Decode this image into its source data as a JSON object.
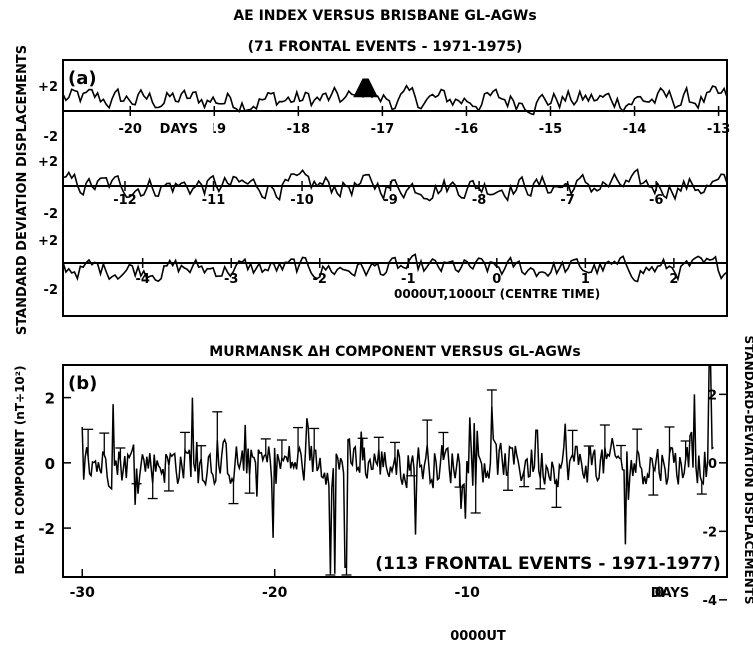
{
  "chart_data": [
    {
      "panel": "(a)",
      "type": "line",
      "title": "AE INDEX VERSUS BRISBANE GL-AGWs",
      "subtitle": "(71 FRONTAL EVENTS - 1971-1975)",
      "ylabel": "STANDARD DEVIATION DISPLACEMENTS",
      "ylim": [
        -2,
        2
      ],
      "rows": [
        {
          "row": 1,
          "xlim": [
            -20.8,
            -12.9
          ],
          "ticks": [
            "-20",
            "-19",
            "-18",
            "-17",
            "-16",
            "-15",
            "-14",
            "-13"
          ],
          "tick_values": [
            -20,
            -19,
            -18,
            -17,
            -16,
            -15,
            -14,
            -13
          ],
          "ytick_labels": [
            "+2",
            "-2"
          ],
          "axis_label": "DAYS",
          "highlight": {
            "x_start": -17.3,
            "x_end": -17.1,
            "note": "filled peak above +2"
          }
        },
        {
          "row": 2,
          "xlim": [
            -12.7,
            -5.2
          ],
          "ticks": [
            "-12",
            "-11",
            "-10",
            "-9",
            "-8",
            "-7",
            "-6"
          ],
          "tick_values": [
            -12,
            -11,
            -10,
            -9,
            -8,
            -7,
            -6
          ],
          "ytick_labels": [
            "+2",
            "-2"
          ]
        },
        {
          "row": 3,
          "xlim": [
            -4.9,
            2.6
          ],
          "ticks": [
            "-4",
            "-3",
            "-2",
            "-1",
            "0",
            "1",
            "2"
          ],
          "tick_values": [
            -4,
            -3,
            -2,
            -1,
            0,
            1,
            2
          ],
          "ytick_labels": [
            "+2",
            "-2"
          ],
          "axis_label": "0000UT,1000LT (CENTRE TIME)"
        }
      ]
    },
    {
      "panel": "(b)",
      "type": "line",
      "title": "MURMANSK ΔH COMPONENT VERSUS GL-AGWs",
      "annotation": "(113 FRONTAL EVENTS - 1971-1977)",
      "ylabel": "DELTA H COMPONENT (nT÷10²)",
      "y2label": "STANDARD-DEVIATION DISPLACEMENTS",
      "xlim": [
        -31,
        3.5
      ],
      "ylim": [
        -3.5,
        3
      ],
      "x_ticks": [
        "-30",
        "-20",
        "-10",
        "0"
      ],
      "x_tick_values": [
        -30,
        -20,
        -10,
        0
      ],
      "y_ticks": [
        "2",
        "0",
        "-2"
      ],
      "y_tick_values": [
        2,
        0,
        -2
      ],
      "y2_ticks": [
        "2",
        "0",
        "-2",
        "-4"
      ],
      "y2_tick_values": [
        2.1,
        0,
        -2.1,
        -4.2
      ],
      "xlabel_right": "DAYS",
      "xlabel_bottom": "0000UT",
      "error_bars": true
    }
  ],
  "labels": {
    "a_title": "AE INDEX VERSUS BRISBANE GL-AGWs",
    "a_subtitle": "(71 FRONTAL EVENTS - 1971-1975)",
    "a_ylabel": "STANDARD DEVIATION DISPLACEMENTS",
    "a_panel": "(a)",
    "a_days": "DAYS",
    "a_centre": "0000UT,1000LT (CENTRE TIME)",
    "b_title": "MURMANSK ΔH COMPONENT VERSUS GL-AGWs",
    "b_panel": "(b)",
    "b_ylabel": "DELTA H COMPONENT (nT÷10²)",
    "b_y2label": "STANDARD-DEVIATION DISPLACEMENTS",
    "b_annotation": "(113 FRONTAL EVENTS - 1971-1977)",
    "b_days": "DAYS",
    "b_time": "0000UT"
  }
}
